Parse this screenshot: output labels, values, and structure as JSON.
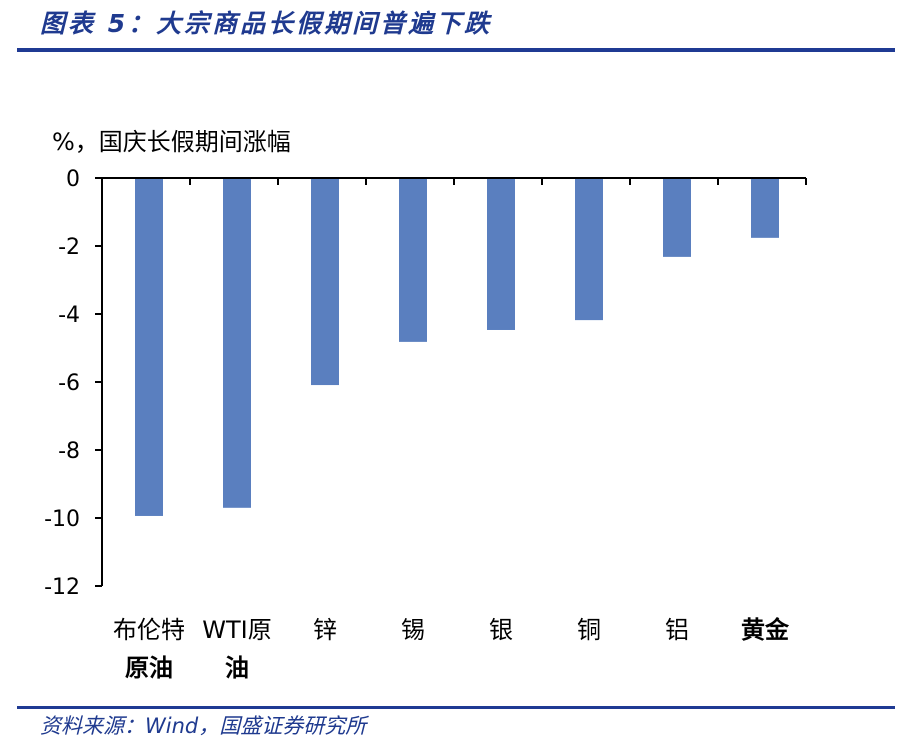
{
  "header": {
    "title": "图表 5：大宗商品长假期间普遍下跌"
  },
  "footer": {
    "source": "资料来源：Wind，国盛证券研究所"
  },
  "chart_data": {
    "type": "bar",
    "ylabel": "%，国庆长假期间涨幅",
    "categories": [
      [
        "布伦特",
        "原油"
      ],
      [
        "WTI原",
        "油"
      ],
      [
        "锌"
      ],
      [
        "锡"
      ],
      [
        "银"
      ],
      [
        "铜"
      ],
      [
        "铝"
      ],
      [
        "黄金"
      ]
    ],
    "values": [
      -9.94,
      -9.7,
      -6.09,
      -4.82,
      -4.47,
      -4.18,
      -2.32,
      -1.76
    ],
    "ylim": [
      -12,
      0
    ],
    "yticks": [
      0,
      -2,
      -4,
      -6,
      -8,
      -10,
      -12
    ],
    "bar_color": "#5a7fbf",
    "grid": false
  }
}
